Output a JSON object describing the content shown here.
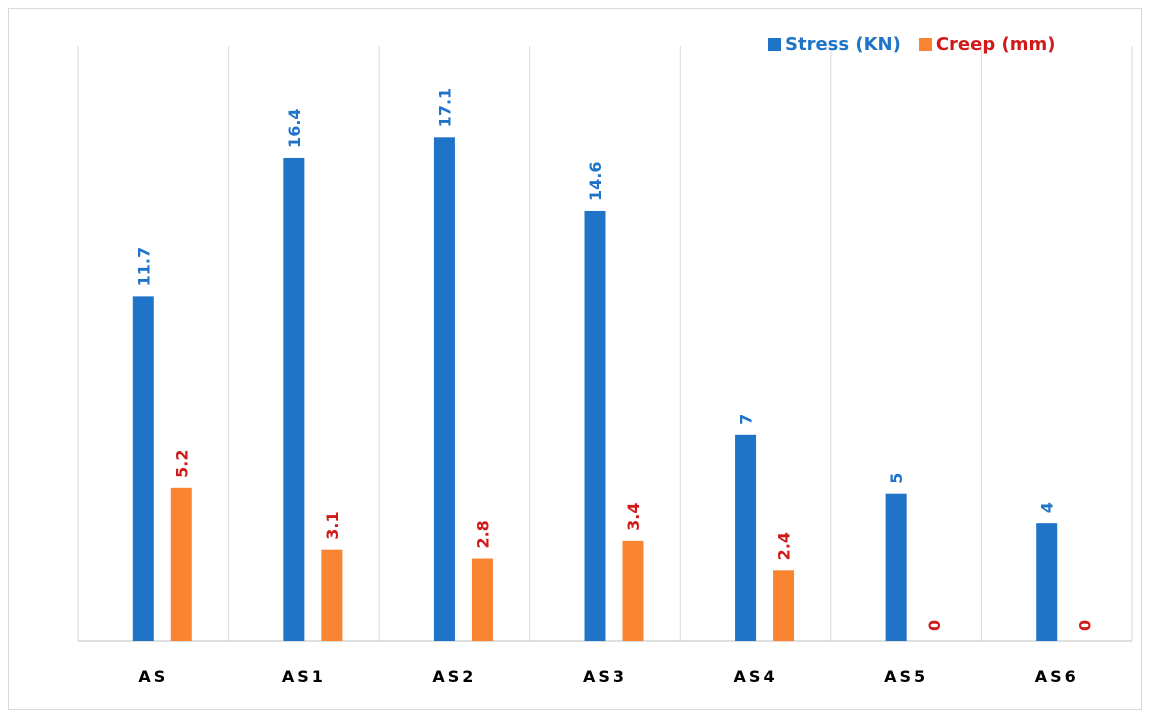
{
  "chart_data": {
    "type": "bar",
    "categories": [
      "AS",
      "AS1",
      "AS2",
      "AS3",
      "AS4",
      "AS5",
      "AS6"
    ],
    "series": [
      {
        "name": "Stress (KN)",
        "values": [
          11.7,
          16.4,
          17.1,
          14.6,
          7,
          5,
          4
        ],
        "labels": [
          "11.7",
          "16.4",
          "17.1",
          "14.6",
          "7",
          "5",
          "4"
        ],
        "color": "#1F74C8",
        "label_color": "#1F74C8"
      },
      {
        "name": "Creep (mm)",
        "values": [
          5.2,
          3.1,
          2.8,
          3.4,
          2.4,
          0,
          0
        ],
        "labels": [
          "5.2",
          "3.1",
          "2.8",
          "3.4",
          "2.4",
          "0",
          "0"
        ],
        "color": "#F98432",
        "label_color": "#D11A1A"
      }
    ],
    "title": "",
    "xlabel": "",
    "ylabel": "",
    "ylim": [
      0,
      20.2
    ],
    "grid": "vertical category separators",
    "legend_position": "top-right",
    "legend_text_colors": [
      "#1F74C8",
      "#D11A1A"
    ]
  }
}
